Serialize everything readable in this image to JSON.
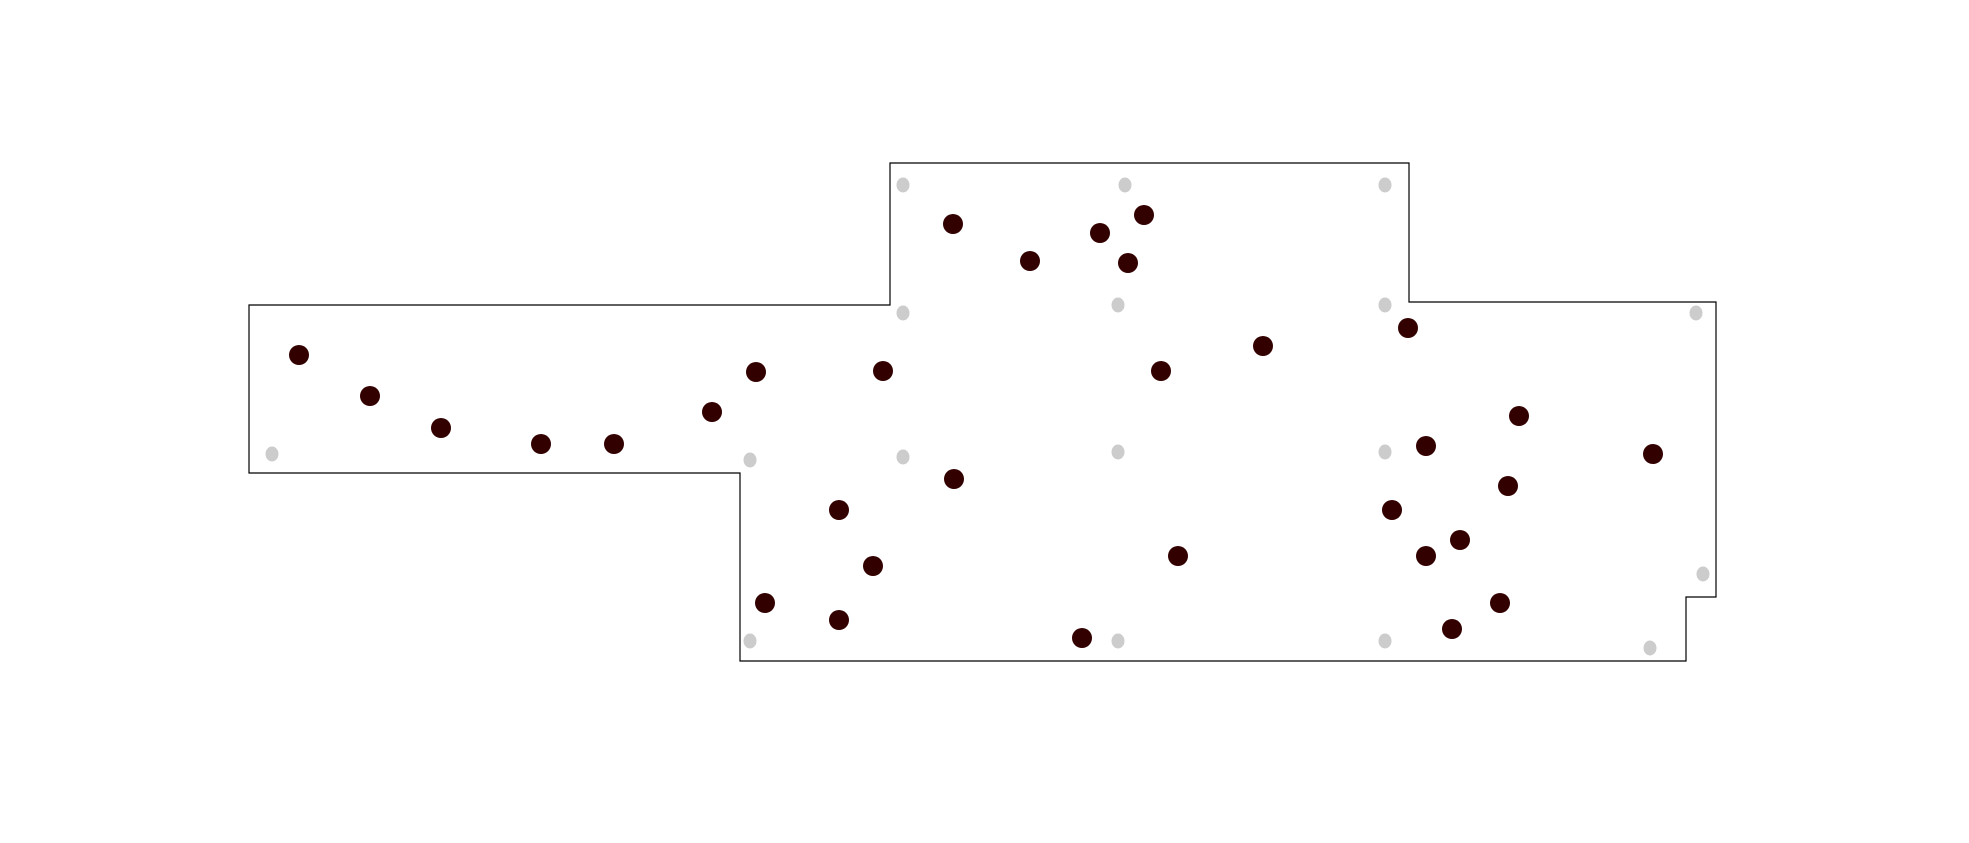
{
  "colors": {
    "background": "#ffffff",
    "outline": "#000000",
    "marker_primary": "#330000",
    "marker_secondary": "#cccccc"
  }
}
